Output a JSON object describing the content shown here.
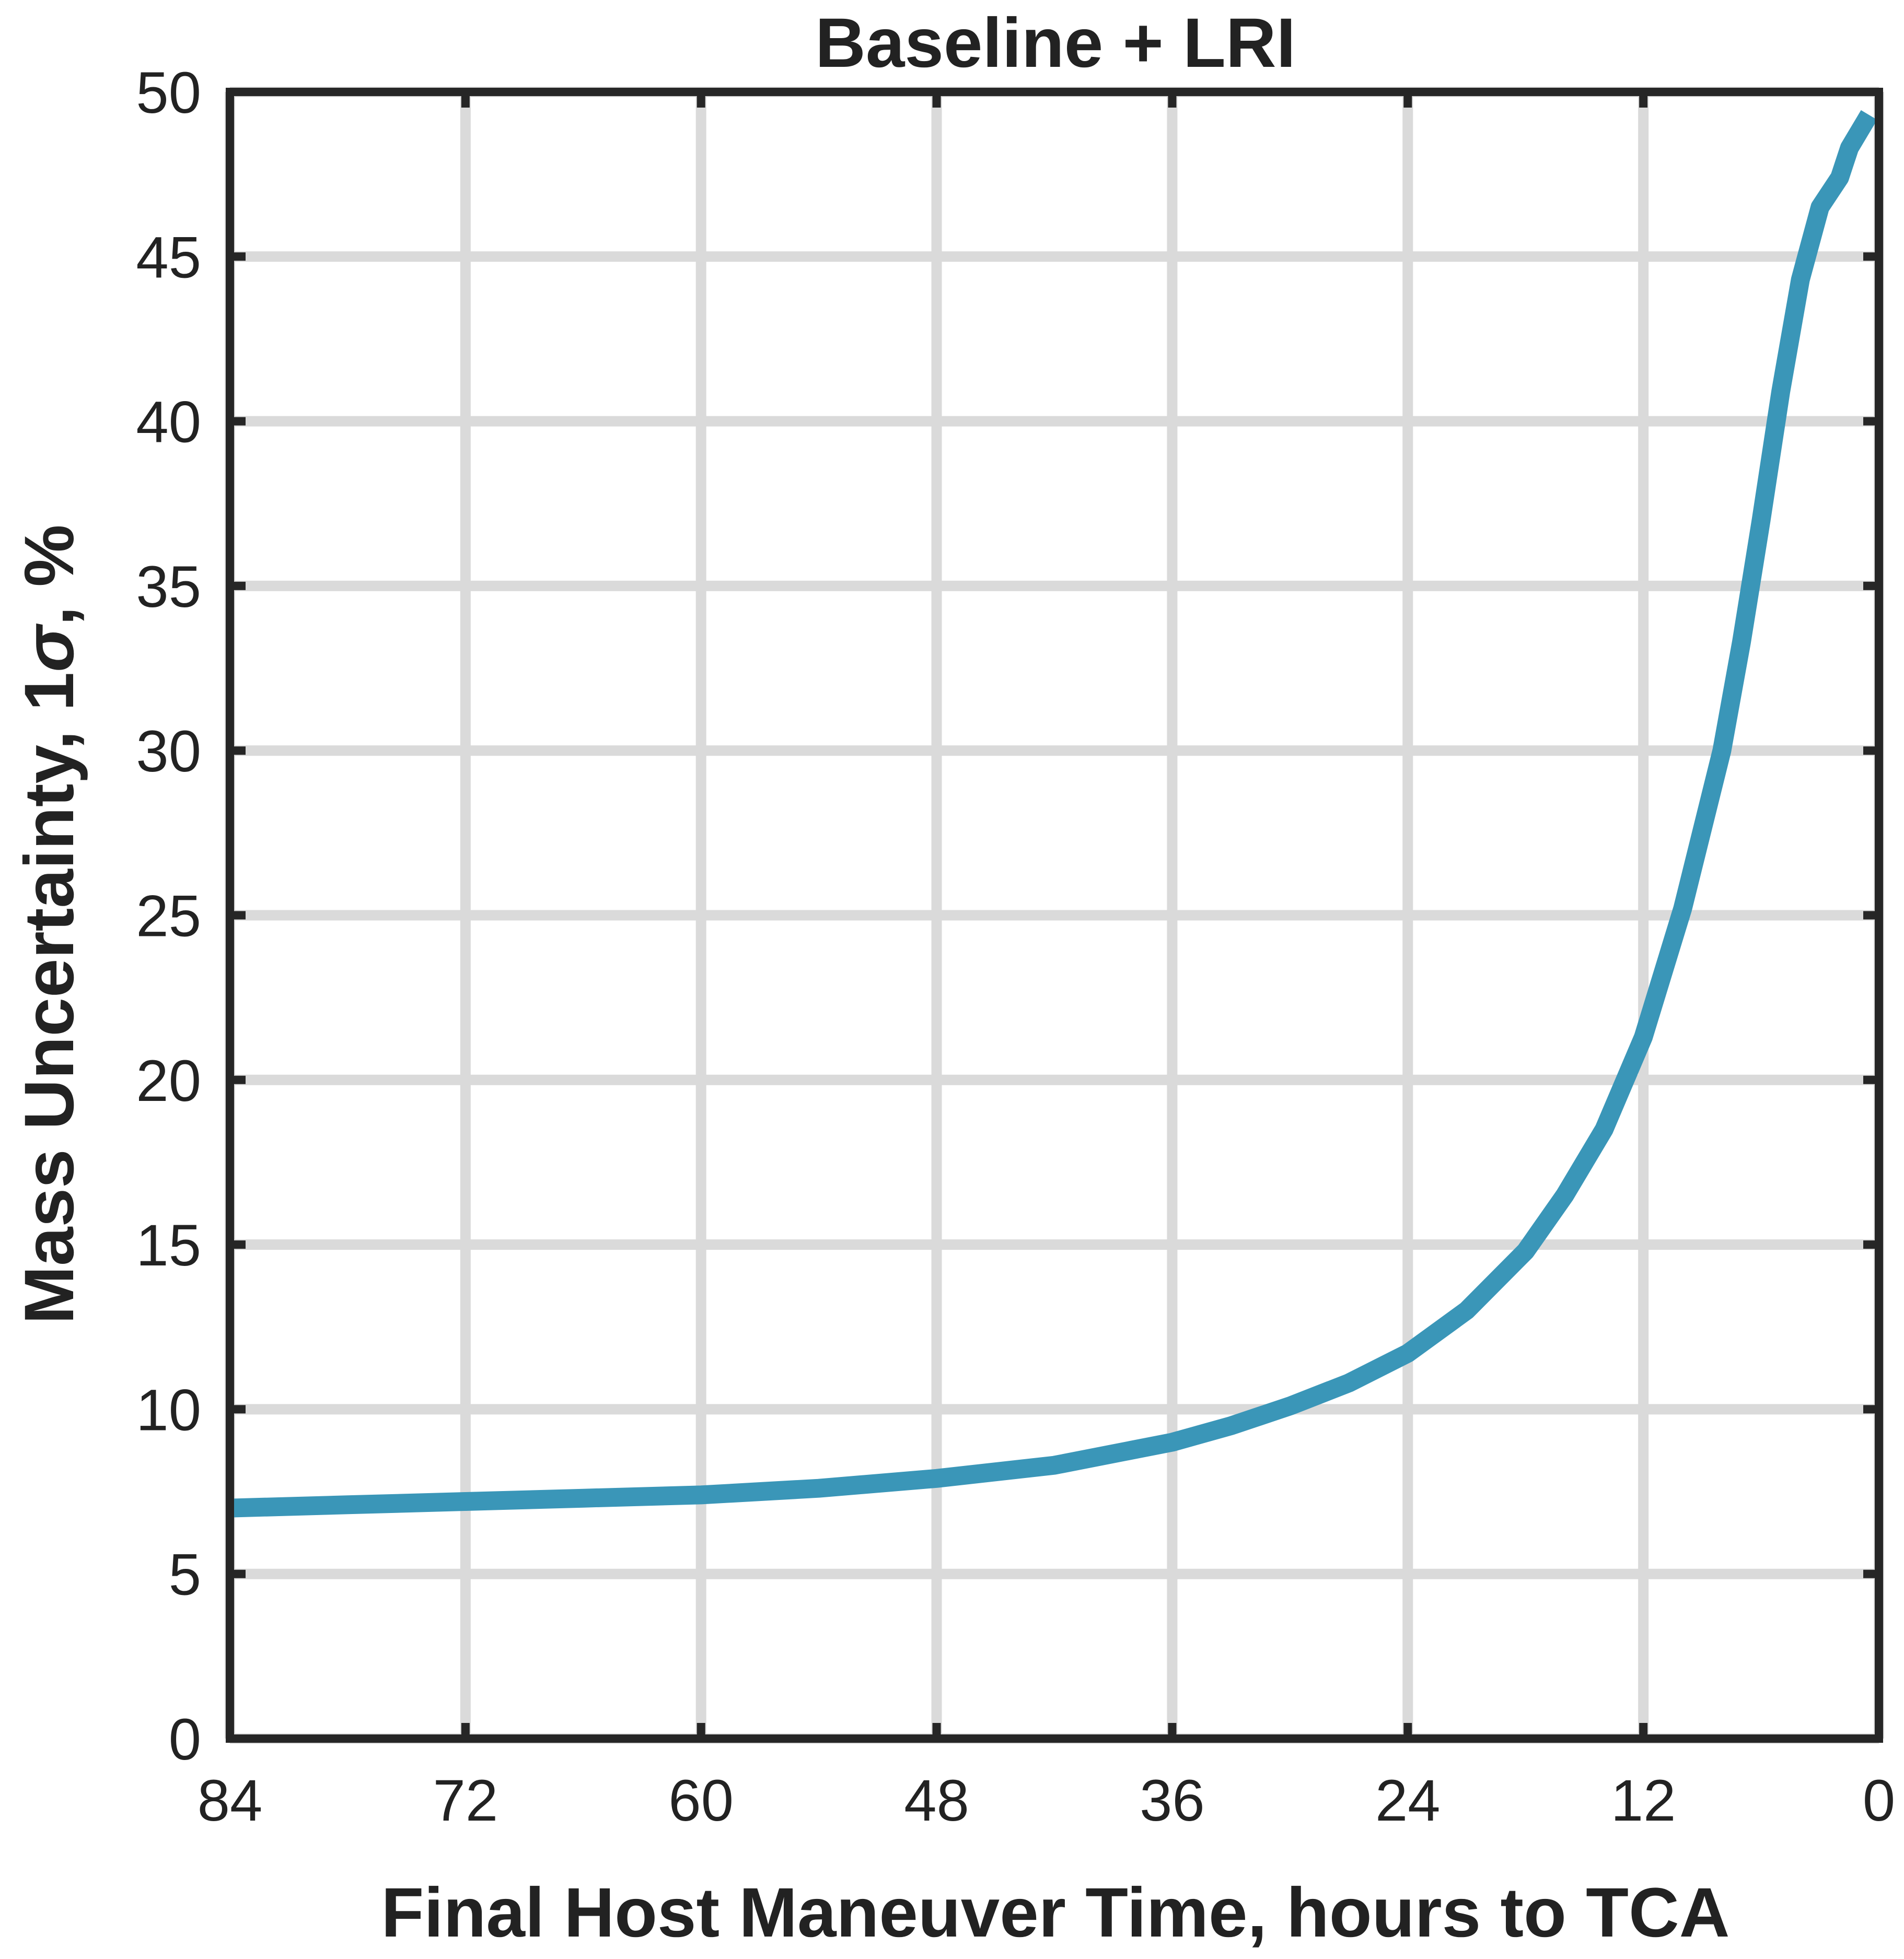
{
  "chart_data": {
    "type": "line",
    "title": "Baseline + LRI",
    "xlabel": "Final Host Maneuver Time, hours to TCA",
    "ylabel_parts": [
      "Mass Uncertainty, 1",
      "σ",
      ", %"
    ],
    "xlim": [
      84,
      0
    ],
    "ylim": [
      0,
      50
    ],
    "x_ticks": [
      84,
      72,
      60,
      48,
      36,
      24,
      12,
      0
    ],
    "y_ticks": [
      0,
      5,
      10,
      15,
      20,
      25,
      30,
      35,
      40,
      45,
      50
    ],
    "x_tick_labels": [
      "84",
      "72",
      "60",
      "48",
      "36",
      "24",
      "12",
      "0"
    ],
    "y_tick_labels": [
      "0",
      "5",
      "10",
      "15",
      "20",
      "25",
      "30",
      "35",
      "40",
      "45",
      "50"
    ],
    "grid": true,
    "x_axis_reversed": true,
    "series": [
      {
        "color": "#3a96b8",
        "x": [
          84,
          78,
          72,
          66,
          60,
          54,
          48,
          42,
          36,
          33,
          30,
          27,
          24,
          21,
          18,
          16,
          14,
          12,
          10,
          8,
          7,
          6,
          5,
          4,
          3,
          2,
          1.5,
          0.5
        ],
        "y": [
          7.0,
          7.1,
          7.2,
          7.3,
          7.4,
          7.6,
          7.9,
          8.3,
          9.0,
          9.5,
          10.1,
          10.8,
          11.7,
          13.0,
          14.8,
          16.5,
          18.5,
          21.3,
          25.2,
          30.0,
          33.3,
          37.0,
          40.9,
          44.3,
          46.5,
          47.4,
          48.3,
          49.3
        ]
      }
    ]
  }
}
